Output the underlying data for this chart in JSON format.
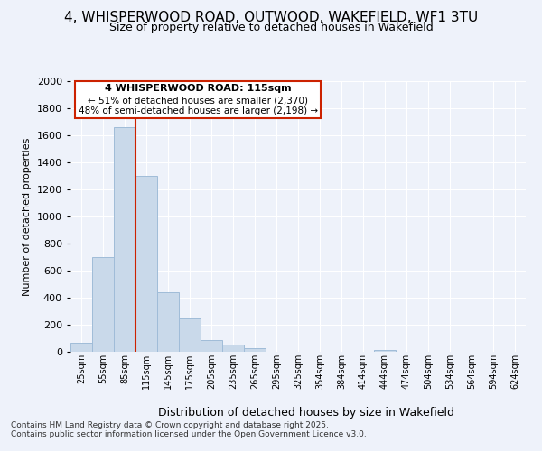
{
  "title_line1": "4, WHISPERWOOD ROAD, OUTWOOD, WAKEFIELD, WF1 3TU",
  "title_line2": "Size of property relative to detached houses in Wakefield",
  "xlabel": "Distribution of detached houses by size in Wakefield",
  "ylabel": "Number of detached properties",
  "categories": [
    "25sqm",
    "55sqm",
    "85sqm",
    "115sqm",
    "145sqm",
    "175sqm",
    "205sqm",
    "235sqm",
    "265sqm",
    "295sqm",
    "325sqm",
    "354sqm",
    "384sqm",
    "414sqm",
    "444sqm",
    "474sqm",
    "504sqm",
    "534sqm",
    "564sqm",
    "594sqm",
    "624sqm"
  ],
  "values": [
    65,
    700,
    1660,
    1300,
    440,
    250,
    90,
    55,
    25,
    0,
    0,
    0,
    0,
    0,
    15,
    0,
    0,
    0,
    0,
    0,
    0
  ],
  "bar_color": "#c9d9ea",
  "bar_edge_color": "#a0bcd8",
  "annotation_box_edge_color": "#cc2200",
  "annotation_box_face_color": "#ffffff",
  "vline_color": "#cc2200",
  "vline_x_index": 3,
  "annotation_title": "4 WHISPERWOOD ROAD: 115sqm",
  "annotation_line1": "← 51% of detached houses are smaller (2,370)",
  "annotation_line2": "48% of semi-detached houses are larger (2,198) →",
  "ylim": [
    0,
    2000
  ],
  "yticks": [
    0,
    200,
    400,
    600,
    800,
    1000,
    1200,
    1400,
    1600,
    1800,
    2000
  ],
  "footer_line1": "Contains HM Land Registry data © Crown copyright and database right 2025.",
  "footer_line2": "Contains public sector information licensed under the Open Government Licence v3.0.",
  "bg_color": "#eef2fa",
  "grid_color": "#ffffff",
  "title1_fontsize": 11,
  "title2_fontsize": 9
}
